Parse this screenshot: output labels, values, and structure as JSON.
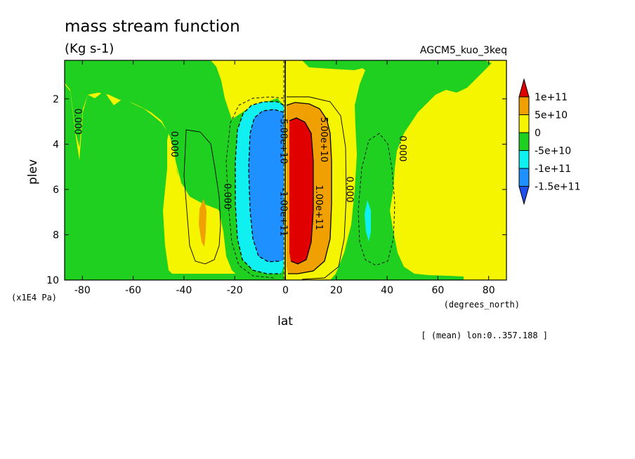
{
  "chart_data": {
    "type": "contour",
    "title": "mass stream function",
    "subtitle": "(Kg s-1)",
    "experiment": "AGCM5_kuo_3keq",
    "xlabel": "lat",
    "x_units": "(degrees_north)",
    "ylabel": "plev",
    "y_units": "(x1E4 Pa)",
    "footnote": "[ (mean) lon:0..357.188 ]",
    "xlim": [
      -87,
      87
    ],
    "ylim": [
      10,
      0.3
    ],
    "x_ticks": [
      -80,
      -60,
      -40,
      -20,
      0,
      20,
      40,
      60,
      80
    ],
    "y_ticks": [
      2,
      4,
      6,
      8,
      10
    ],
    "colorbar": {
      "levels": [
        "1e+11",
        "5e+10",
        "0",
        "-5e+10",
        "-1e+11",
        "-1.5e+11"
      ],
      "colors": [
        "#e00000",
        "#f0a000",
        "#f5f500",
        "#20d020",
        "#10f0f0",
        "#1e90ff",
        "#1e50f0"
      ]
    },
    "contour_labels": [
      {
        "text": "5.00e+10",
        "lat": 14,
        "plev": 3.8
      },
      {
        "text": "1.00e+11",
        "lat": 12,
        "plev": 6.8
      },
      {
        "text": "-1.00e+11",
        "lat": -2,
        "plev": 7.0
      },
      {
        "text": "-5.00e+10",
        "lat": -2,
        "plev": 3.8
      },
      {
        "text": "0.000",
        "lat": -83,
        "plev": 3.0
      },
      {
        "text": "0.000",
        "lat": -45,
        "plev": 4.0
      },
      {
        "text": "0.000",
        "lat": -24,
        "plev": 6.3
      },
      {
        "text": "0.000",
        "lat": 24,
        "plev": 6.0
      },
      {
        "text": "0.000",
        "lat": 45,
        "plev": 4.2
      }
    ]
  }
}
